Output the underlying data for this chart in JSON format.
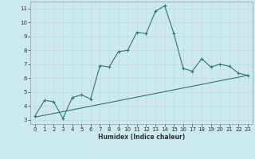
{
  "xlabel": "Humidex (Indice chaleur)",
  "background_color": "#cce9ed",
  "grid_color": "#c0d8dc",
  "line_color": "#2a7a6a",
  "xlim_min": -0.5,
  "xlim_max": 23.5,
  "ylim_min": 2.7,
  "ylim_max": 11.5,
  "yticks": [
    3,
    4,
    5,
    6,
    7,
    8,
    9,
    10,
    11
  ],
  "xticks": [
    0,
    1,
    2,
    3,
    4,
    5,
    6,
    7,
    8,
    9,
    10,
    11,
    12,
    13,
    14,
    15,
    16,
    17,
    18,
    19,
    20,
    21,
    22,
    23
  ],
  "series1_x": [
    0,
    1,
    2,
    3,
    4,
    5,
    6,
    7,
    8,
    9,
    10,
    11,
    12,
    13,
    14,
    15,
    16,
    17,
    18,
    19,
    20,
    21,
    22,
    23
  ],
  "series1_y": [
    3.3,
    4.4,
    4.3,
    3.1,
    4.6,
    4.8,
    4.5,
    6.9,
    6.8,
    7.9,
    8.0,
    9.3,
    9.2,
    10.8,
    11.2,
    9.2,
    6.7,
    6.5,
    7.4,
    6.8,
    7.0,
    6.85,
    6.35,
    6.2
  ],
  "series2_x": [
    0,
    23
  ],
  "series2_y": [
    3.2,
    6.2
  ],
  "marker_size": 2.5,
  "line_width": 0.8,
  "tick_fontsize": 5.0,
  "xlabel_fontsize": 5.5
}
